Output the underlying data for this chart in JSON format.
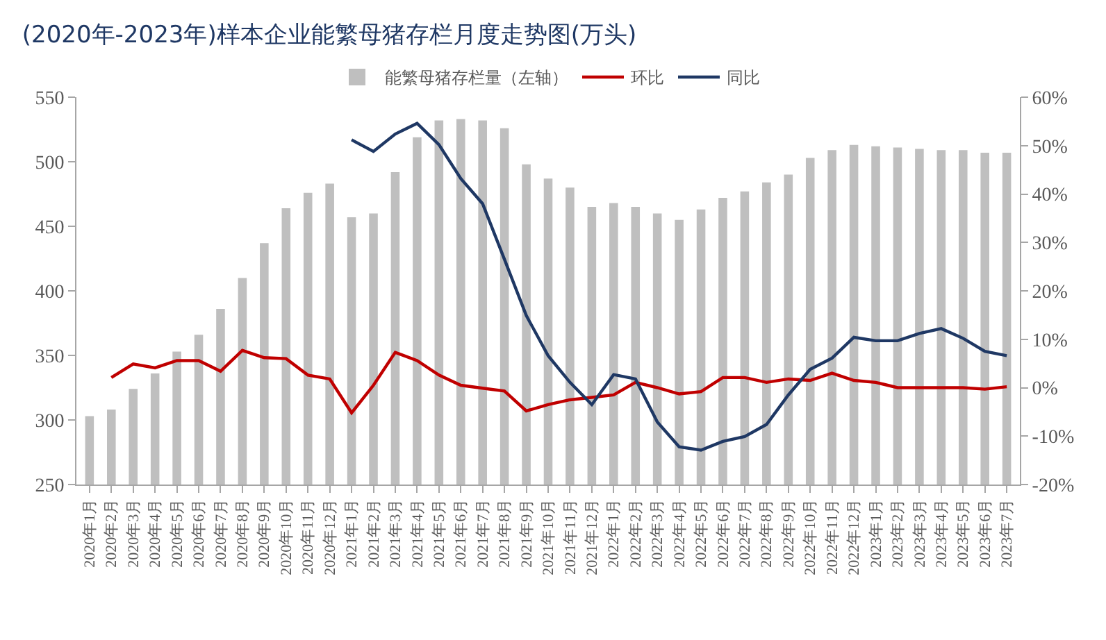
{
  "chart_data": {
    "type": "bar",
    "title": "(2020年-2023年)样本企业能繁母猪存栏月度走势图(万头)",
    "categories": [
      "2020年1月",
      "2020年2月",
      "2020年3月",
      "2020年4月",
      "2020年5月",
      "2020年6月",
      "2020年7月",
      "2020年8月",
      "2020年9月",
      "2020年10月",
      "2020年11月",
      "2020年12月",
      "2021年1月",
      "2021年2月",
      "2021年3月",
      "2021年4月",
      "2021年5月",
      "2021年6月",
      "2021年7月",
      "2021年8月",
      "2021年9月",
      "2021年10月",
      "2021年11月",
      "2021年12月",
      "2022年1月",
      "2022年2月",
      "2022年3月",
      "2022年4月",
      "2022年5月",
      "2022年6月",
      "2022年7月",
      "2022年8月",
      "2022年9月",
      "2022年10月",
      "2022年11月",
      "2022年12月",
      "2023年1月",
      "2023年2月",
      "2023年3月",
      "2023年4月",
      "2023年5月",
      "2023年6月",
      "2023年7月"
    ],
    "series": [
      {
        "name": "能繁母猪存栏量（左轴）",
        "color": "#bfbfbf",
        "values": [
          303,
          308,
          324,
          336,
          353,
          366,
          386,
          410,
          437,
          464,
          476,
          483,
          457,
          460,
          492,
          519,
          532,
          533,
          532,
          526,
          498,
          487,
          480,
          465,
          468,
          465,
          460,
          455,
          463,
          472,
          477,
          484,
          490,
          503,
          509,
          513,
          512,
          511,
          510,
          509,
          509,
          507,
          507
        ]
      },
      {
        "name": "环比",
        "type": "line",
        "axis": "y2",
        "color": "#c00000",
        "values": [
          null,
          2.1,
          4.9,
          4.1,
          5.6,
          5.6,
          3.4,
          7.7,
          6.2,
          6.0,
          2.6,
          1.8,
          -5.2,
          0.5,
          7.3,
          5.6,
          2.6,
          0.5,
          -0.1,
          -0.7,
          -4.8,
          -3.5,
          -2.5,
          -2.0,
          -1.5,
          1.1,
          0.0,
          -1.3,
          -0.8,
          2.1,
          2.1,
          1.1,
          1.8,
          1.5,
          3.0,
          1.5,
          1.1,
          0.0,
          0.0,
          0.0,
          0.0,
          -0.3,
          0.2
        ]
      },
      {
        "name": "同比",
        "type": "line",
        "axis": "y2",
        "color": "#1f3864",
        "values": [
          null,
          null,
          null,
          null,
          null,
          null,
          null,
          null,
          null,
          null,
          null,
          null,
          51.2,
          48.8,
          52.4,
          54.6,
          50.2,
          43.2,
          38.0,
          26.5,
          14.9,
          6.6,
          1.1,
          -3.5,
          2.7,
          1.8,
          -7.1,
          -12.2,
          -12.9,
          -11.1,
          -10.1,
          -7.6,
          -1.5,
          3.8,
          6.1,
          10.4,
          9.7,
          9.7,
          11.2,
          12.2,
          10.2,
          7.5,
          6.6
        ]
      }
    ],
    "ylim": [
      250,
      550
    ],
    "yticks": [
      250,
      300,
      350,
      400,
      450,
      500,
      550
    ],
    "y2lim": [
      -20,
      60
    ],
    "y2ticks": [
      {
        "value": -20,
        "label": "-20%"
      },
      {
        "value": -10,
        "label": "-10%"
      },
      {
        "value": 0,
        "label": "0%"
      },
      {
        "value": 10,
        "label": "10%"
      },
      {
        "value": 20,
        "label": "20%"
      },
      {
        "value": 30,
        "label": "30%"
      },
      {
        "value": 40,
        "label": "40%"
      },
      {
        "value": 50,
        "label": "50%"
      },
      {
        "value": 60,
        "label": "60%"
      }
    ],
    "grid": false,
    "legend": "top",
    "marker": "none",
    "line_style": "solid"
  }
}
